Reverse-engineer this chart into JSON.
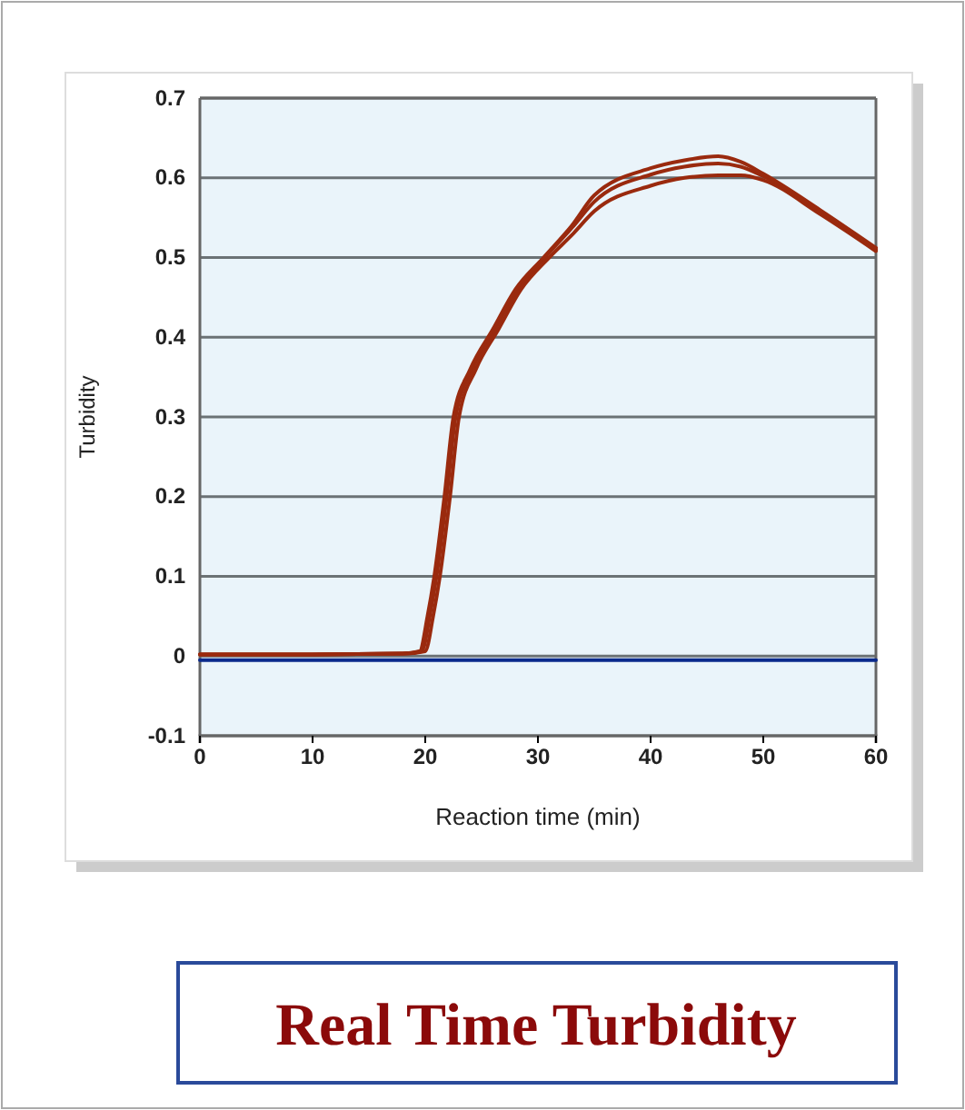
{
  "chart_data": {
    "type": "line",
    "title": "Real Time Turbidity",
    "xlabel": "Reaction time (min)",
    "ylabel": "Turbidity",
    "xlim": [
      0,
      60
    ],
    "ylim": [
      -0.1,
      0.7
    ],
    "xticks": [
      0,
      10,
      20,
      30,
      40,
      50,
      60
    ],
    "yticks": [
      -0.1,
      0,
      0.1,
      0.2,
      0.3,
      0.4,
      0.5,
      0.6,
      0.7
    ],
    "grid": "y",
    "marker": "none",
    "line_style": "solid",
    "series": [
      {
        "color": "#9a2a0e",
        "x": [
          0,
          10,
          18,
          19.5,
          20.2,
          20.8,
          21.7,
          22.5,
          24,
          26,
          28,
          30.5,
          33,
          35,
          40,
          43,
          46,
          48,
          50,
          55,
          60
        ],
        "values": [
          0.002,
          0.002,
          0.003,
          0.006,
          0.05,
          0.1,
          0.2,
          0.3,
          0.36,
          0.41,
          0.46,
          0.5,
          0.54,
          0.578,
          0.612,
          0.622,
          0.627,
          0.62,
          0.605,
          0.56,
          0.512
        ]
      },
      {
        "color": "#9a2a0e",
        "x": [
          0,
          10,
          18,
          19.7,
          20.4,
          21,
          21.9,
          22.7,
          24.2,
          26.2,
          28.2,
          30.6,
          33,
          35,
          40,
          43,
          46,
          48,
          50,
          55,
          60
        ],
        "values": [
          0.002,
          0.002,
          0.003,
          0.006,
          0.05,
          0.1,
          0.2,
          0.3,
          0.36,
          0.41,
          0.46,
          0.5,
          0.537,
          0.57,
          0.604,
          0.614,
          0.618,
          0.614,
          0.602,
          0.558,
          0.51
        ]
      },
      {
        "color": "#9a2a0e",
        "x": [
          0,
          10,
          18,
          20,
          20.7,
          21.3,
          22.2,
          23,
          24.5,
          26.5,
          28.5,
          31,
          33,
          35,
          40,
          43,
          46,
          48,
          50,
          55,
          60
        ],
        "values": [
          0.002,
          0.002,
          0.003,
          0.006,
          0.05,
          0.1,
          0.2,
          0.3,
          0.36,
          0.41,
          0.46,
          0.5,
          0.528,
          0.558,
          0.59,
          0.6,
          0.603,
          0.603,
          0.597,
          0.555,
          0.508
        ]
      },
      {
        "color": "#0a2a8c",
        "x": [
          0,
          60
        ],
        "values": [
          -0.005,
          -0.005
        ]
      }
    ]
  }
}
